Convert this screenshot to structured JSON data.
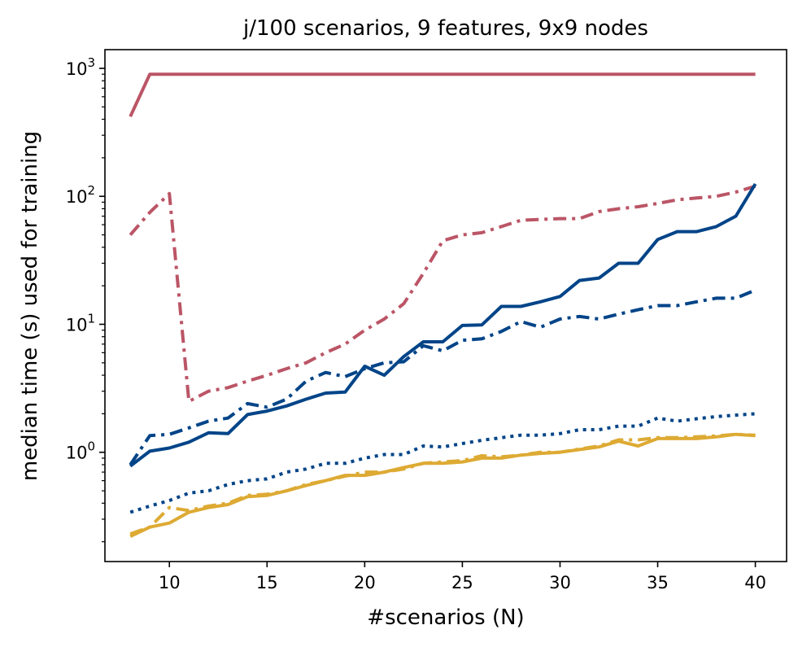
{
  "chart_data": {
    "type": "line",
    "title": "j/100 scenarios, 9 features, 9x9 nodes",
    "xlabel": "#scenarios (N)",
    "ylabel": "median time (s) used for training",
    "xlim": [
      6.7,
      41.6
    ],
    "ylim": [
      0.14,
      1400
    ],
    "yscale": "log",
    "x_ticks": [
      10,
      15,
      20,
      25,
      30,
      35,
      40
    ],
    "y_ticks": [
      {
        "base": "10",
        "exp": "0",
        "value": 1
      },
      {
        "base": "10",
        "exp": "1",
        "value": 10
      },
      {
        "base": "10",
        "exp": "2",
        "value": 100
      },
      {
        "base": "10",
        "exp": "3",
        "value": 1000
      }
    ],
    "x": [
      8,
      9,
      10,
      11,
      12,
      13,
      14,
      15,
      16,
      17,
      18,
      19,
      20,
      21,
      22,
      23,
      24,
      25,
      26,
      27,
      28,
      29,
      30,
      31,
      32,
      33,
      34,
      35,
      36,
      37,
      38,
      39,
      40
    ],
    "series": [
      {
        "name": "red-solid",
        "color": "#bb5566",
        "dash": "solid",
        "values": [
          420,
          900,
          900,
          900,
          900,
          900,
          900,
          900,
          900,
          900,
          900,
          900,
          900,
          900,
          900,
          900,
          900,
          900,
          900,
          900,
          900,
          900,
          900,
          900,
          900,
          900,
          900,
          900,
          900,
          900,
          900,
          900,
          900
        ]
      },
      {
        "name": "red-dashdot",
        "color": "#bb5566",
        "dash": "dashdot",
        "values": [
          50,
          75,
          105,
          2.5,
          3.0,
          3.2,
          3.6,
          4.0,
          4.5,
          5.0,
          6.0,
          7.0,
          9.0,
          11.0,
          14.5,
          25.0,
          45.0,
          50.0,
          52.0,
          58.0,
          65.0,
          66.0,
          67.0,
          67.0,
          76.0,
          80.0,
          83.0,
          88.0,
          94.0,
          97.0,
          100.0,
          108.0,
          120.0
        ]
      },
      {
        "name": "blue-solid",
        "color": "#004488",
        "dash": "solid",
        "values": [
          0.78,
          1.02,
          1.08,
          1.2,
          1.42,
          1.4,
          1.97,
          2.1,
          2.3,
          2.6,
          2.9,
          2.95,
          4.7,
          4.0,
          5.6,
          7.3,
          7.3,
          9.8,
          9.9,
          13.8,
          13.8,
          15.0,
          16.5,
          22.0,
          23.0,
          30.0,
          30.0,
          46.0,
          53.0,
          53.0,
          58.0,
          70.0,
          125.0
        ]
      },
      {
        "name": "blue-dashdot",
        "color": "#004488",
        "dash": "dashdot",
        "values": [
          0.8,
          1.35,
          1.38,
          1.55,
          1.75,
          1.85,
          2.4,
          2.25,
          2.6,
          3.6,
          4.2,
          3.9,
          4.5,
          5.0,
          5.1,
          6.8,
          6.2,
          7.5,
          7.7,
          8.8,
          10.5,
          9.5,
          11.0,
          11.5,
          11.0,
          12.0,
          13.0,
          14.0,
          14.0,
          15.0,
          16.0,
          16.0,
          18.5
        ]
      },
      {
        "name": "blue-dotted",
        "color": "#004488",
        "dash": "dotted",
        "values": [
          0.34,
          0.38,
          0.42,
          0.48,
          0.5,
          0.56,
          0.6,
          0.62,
          0.7,
          0.74,
          0.82,
          0.82,
          0.9,
          0.96,
          0.96,
          1.12,
          1.1,
          1.17,
          1.24,
          1.3,
          1.36,
          1.36,
          1.4,
          1.5,
          1.5,
          1.6,
          1.6,
          1.85,
          1.75,
          1.83,
          1.9,
          1.95,
          2.0
        ]
      },
      {
        "name": "yellow-solid",
        "color": "#ddaa33",
        "dash": "solid",
        "values": [
          0.22,
          0.26,
          0.28,
          0.34,
          0.37,
          0.39,
          0.45,
          0.46,
          0.5,
          0.55,
          0.6,
          0.66,
          0.66,
          0.7,
          0.76,
          0.82,
          0.82,
          0.84,
          0.9,
          0.9,
          0.95,
          0.98,
          1.0,
          1.05,
          1.1,
          1.22,
          1.12,
          1.28,
          1.28,
          1.28,
          1.32,
          1.38,
          1.35
        ]
      },
      {
        "name": "yellow-dashdot",
        "color": "#ddaa33",
        "dash": "dashdot",
        "values": [
          0.23,
          0.26,
          0.37,
          0.35,
          0.38,
          0.4,
          0.46,
          0.47,
          0.5,
          0.56,
          0.6,
          0.65,
          0.7,
          0.7,
          0.74,
          0.82,
          0.84,
          0.86,
          0.94,
          0.92,
          0.95,
          1.0,
          1.0,
          1.06,
          1.12,
          1.25,
          1.25,
          1.3,
          1.3,
          1.32,
          1.34,
          1.38,
          1.36
        ]
      }
    ]
  }
}
